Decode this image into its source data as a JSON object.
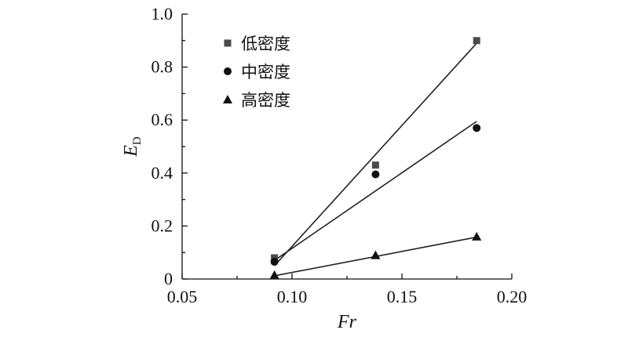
{
  "chart_data": {
    "type": "scatter",
    "title": "",
    "xlabel": "Fr",
    "ylabel": "E",
    "ylabel_subscript": "D",
    "xlim": [
      0.05,
      0.2
    ],
    "ylim": [
      0,
      1.0
    ],
    "x_ticks": [
      0.05,
      0.1,
      0.15,
      0.2
    ],
    "x_tick_labels": [
      "0.05",
      "0.10",
      "0.15",
      "0.20"
    ],
    "y_ticks": [
      0,
      0.2,
      0.4,
      0.6,
      0.8,
      1.0
    ],
    "y_tick_labels": [
      "0",
      "0.2",
      "0.4",
      "0.6",
      "0.8",
      "1.0"
    ],
    "grid": false,
    "legend_position": "top-left",
    "series": [
      {
        "name": "低密度",
        "marker": "square",
        "color": "#4a4a4a",
        "x": [
          0.092,
          0.138,
          0.184
        ],
        "y": [
          0.08,
          0.43,
          0.9
        ],
        "fit": {
          "x": [
            0.092,
            0.184
          ],
          "y": [
            0.05,
            0.89
          ]
        }
      },
      {
        "name": "中密度",
        "marker": "circle",
        "color": "#111111",
        "x": [
          0.092,
          0.138,
          0.184
        ],
        "y": [
          0.065,
          0.395,
          0.57
        ],
        "fit": {
          "x": [
            0.092,
            0.184
          ],
          "y": [
            0.07,
            0.595
          ]
        }
      },
      {
        "name": "高密度",
        "marker": "triangle",
        "color": "#111111",
        "x": [
          0.092,
          0.138,
          0.184
        ],
        "y": [
          0.015,
          0.09,
          0.16
        ],
        "fit": {
          "x": [
            0.092,
            0.184
          ],
          "y": [
            0.012,
            0.158
          ]
        }
      }
    ]
  }
}
